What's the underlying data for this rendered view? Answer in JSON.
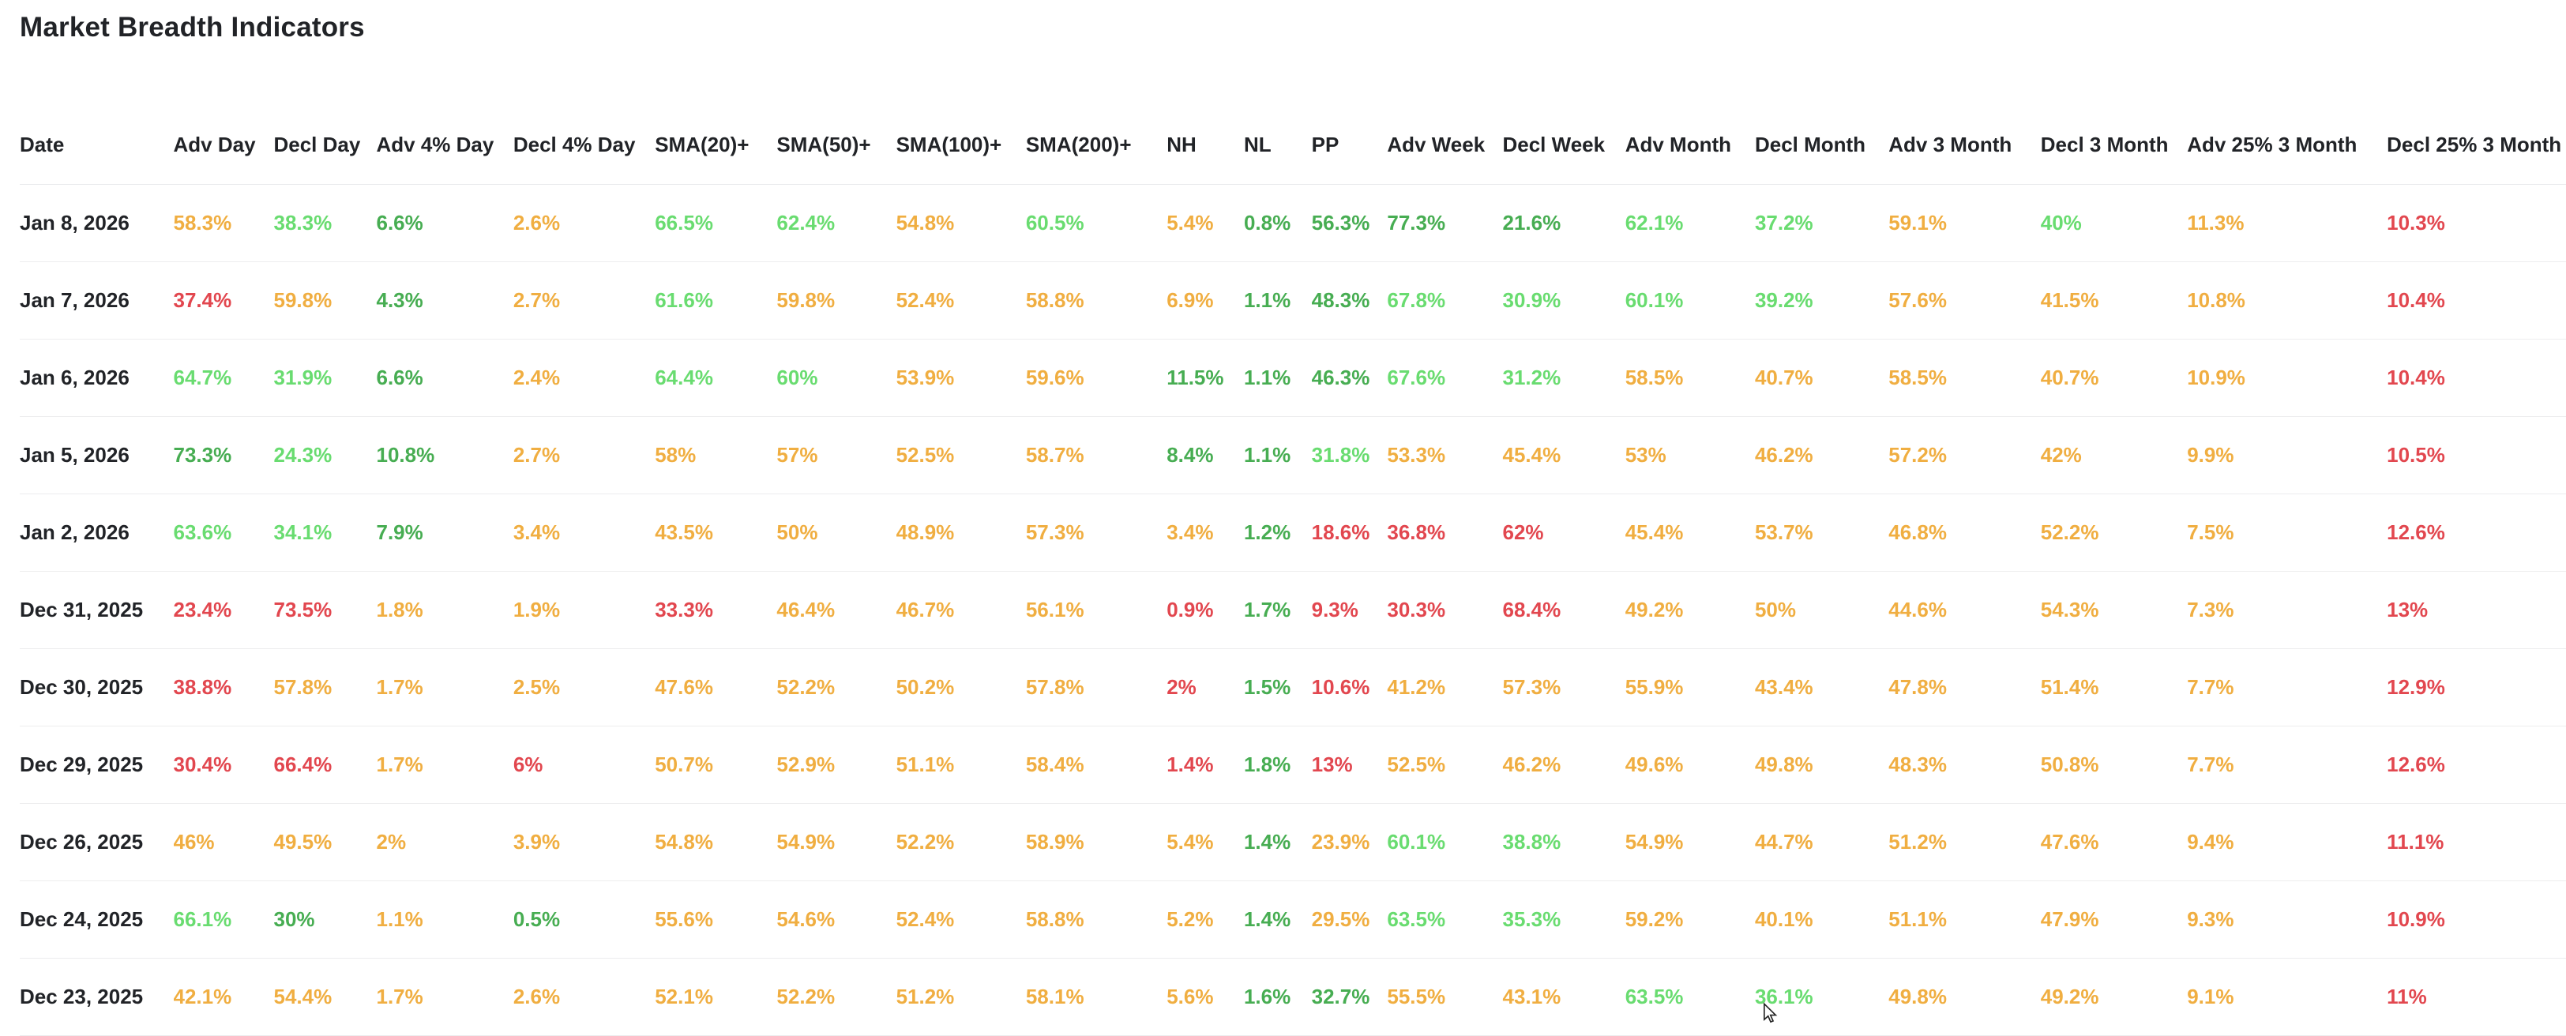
{
  "page": {
    "title": "Market Breadth Indicators"
  },
  "palette": {
    "red": "#e2474f",
    "orange": "#f0ae41",
    "lightgreen": "#69dc70",
    "green": "#47ad52",
    "heading_text": "#212327"
  },
  "table": {
    "columns": [
      "Date",
      "Adv Day",
      "Decl Day",
      "Adv 4% Day",
      "Decl 4% Day",
      "SMA(20)+",
      "SMA(50)+",
      "SMA(100)+",
      "SMA(200)+",
      "NH",
      "NL",
      "PP",
      "Adv Week",
      "Decl Week",
      "Adv Month",
      "Decl Month",
      "Adv 3 Month",
      "Decl 3 Month",
      "Adv 25% 3 Month",
      "Decl 25% 3 Month"
    ],
    "rows": [
      {
        "date": "Jan 8, 2026",
        "cells": [
          {
            "v": "58.3%",
            "c": "orange"
          },
          {
            "v": "38.3%",
            "c": "lightgreen"
          },
          {
            "v": "6.6%",
            "c": "green"
          },
          {
            "v": "2.6%",
            "c": "orange"
          },
          {
            "v": "66.5%",
            "c": "lightgreen"
          },
          {
            "v": "62.4%",
            "c": "lightgreen"
          },
          {
            "v": "54.8%",
            "c": "orange"
          },
          {
            "v": "60.5%",
            "c": "lightgreen"
          },
          {
            "v": "5.4%",
            "c": "orange"
          },
          {
            "v": "0.8%",
            "c": "green"
          },
          {
            "v": "56.3%",
            "c": "green"
          },
          {
            "v": "77.3%",
            "c": "green"
          },
          {
            "v": "21.6%",
            "c": "green"
          },
          {
            "v": "62.1%",
            "c": "lightgreen"
          },
          {
            "v": "37.2%",
            "c": "lightgreen"
          },
          {
            "v": "59.1%",
            "c": "orange"
          },
          {
            "v": "40%",
            "c": "lightgreen"
          },
          {
            "v": "11.3%",
            "c": "orange"
          },
          {
            "v": "10.3%",
            "c": "red"
          }
        ]
      },
      {
        "date": "Jan 7, 2026",
        "cells": [
          {
            "v": "37.4%",
            "c": "red"
          },
          {
            "v": "59.8%",
            "c": "orange"
          },
          {
            "v": "4.3%",
            "c": "green"
          },
          {
            "v": "2.7%",
            "c": "orange"
          },
          {
            "v": "61.6%",
            "c": "lightgreen"
          },
          {
            "v": "59.8%",
            "c": "orange"
          },
          {
            "v": "52.4%",
            "c": "orange"
          },
          {
            "v": "58.8%",
            "c": "orange"
          },
          {
            "v": "6.9%",
            "c": "orange"
          },
          {
            "v": "1.1%",
            "c": "green"
          },
          {
            "v": "48.3%",
            "c": "green"
          },
          {
            "v": "67.8%",
            "c": "lightgreen"
          },
          {
            "v": "30.9%",
            "c": "lightgreen"
          },
          {
            "v": "60.1%",
            "c": "lightgreen"
          },
          {
            "v": "39.2%",
            "c": "lightgreen"
          },
          {
            "v": "57.6%",
            "c": "orange"
          },
          {
            "v": "41.5%",
            "c": "orange"
          },
          {
            "v": "10.8%",
            "c": "orange"
          },
          {
            "v": "10.4%",
            "c": "red"
          }
        ]
      },
      {
        "date": "Jan 6, 2026",
        "cells": [
          {
            "v": "64.7%",
            "c": "lightgreen"
          },
          {
            "v": "31.9%",
            "c": "lightgreen"
          },
          {
            "v": "6.6%",
            "c": "green"
          },
          {
            "v": "2.4%",
            "c": "orange"
          },
          {
            "v": "64.4%",
            "c": "lightgreen"
          },
          {
            "v": "60%",
            "c": "lightgreen"
          },
          {
            "v": "53.9%",
            "c": "orange"
          },
          {
            "v": "59.6%",
            "c": "orange"
          },
          {
            "v": "11.5%",
            "c": "green"
          },
          {
            "v": "1.1%",
            "c": "green"
          },
          {
            "v": "46.3%",
            "c": "green"
          },
          {
            "v": "67.6%",
            "c": "lightgreen"
          },
          {
            "v": "31.2%",
            "c": "lightgreen"
          },
          {
            "v": "58.5%",
            "c": "orange"
          },
          {
            "v": "40.7%",
            "c": "orange"
          },
          {
            "v": "58.5%",
            "c": "orange"
          },
          {
            "v": "40.7%",
            "c": "orange"
          },
          {
            "v": "10.9%",
            "c": "orange"
          },
          {
            "v": "10.4%",
            "c": "red"
          }
        ]
      },
      {
        "date": "Jan 5, 2026",
        "cells": [
          {
            "v": "73.3%",
            "c": "green"
          },
          {
            "v": "24.3%",
            "c": "lightgreen"
          },
          {
            "v": "10.8%",
            "c": "green"
          },
          {
            "v": "2.7%",
            "c": "orange"
          },
          {
            "v": "58%",
            "c": "orange"
          },
          {
            "v": "57%",
            "c": "orange"
          },
          {
            "v": "52.5%",
            "c": "orange"
          },
          {
            "v": "58.7%",
            "c": "orange"
          },
          {
            "v": "8.4%",
            "c": "green"
          },
          {
            "v": "1.1%",
            "c": "green"
          },
          {
            "v": "31.8%",
            "c": "lightgreen"
          },
          {
            "v": "53.3%",
            "c": "orange"
          },
          {
            "v": "45.4%",
            "c": "orange"
          },
          {
            "v": "53%",
            "c": "orange"
          },
          {
            "v": "46.2%",
            "c": "orange"
          },
          {
            "v": "57.2%",
            "c": "orange"
          },
          {
            "v": "42%",
            "c": "orange"
          },
          {
            "v": "9.9%",
            "c": "orange"
          },
          {
            "v": "10.5%",
            "c": "red"
          }
        ]
      },
      {
        "date": "Jan 2, 2026",
        "cells": [
          {
            "v": "63.6%",
            "c": "lightgreen"
          },
          {
            "v": "34.1%",
            "c": "lightgreen"
          },
          {
            "v": "7.9%",
            "c": "green"
          },
          {
            "v": "3.4%",
            "c": "orange"
          },
          {
            "v": "43.5%",
            "c": "orange"
          },
          {
            "v": "50%",
            "c": "orange"
          },
          {
            "v": "48.9%",
            "c": "orange"
          },
          {
            "v": "57.3%",
            "c": "orange"
          },
          {
            "v": "3.4%",
            "c": "orange"
          },
          {
            "v": "1.2%",
            "c": "green"
          },
          {
            "v": "18.6%",
            "c": "red"
          },
          {
            "v": "36.8%",
            "c": "red"
          },
          {
            "v": "62%",
            "c": "red"
          },
          {
            "v": "45.4%",
            "c": "orange"
          },
          {
            "v": "53.7%",
            "c": "orange"
          },
          {
            "v": "46.8%",
            "c": "orange"
          },
          {
            "v": "52.2%",
            "c": "orange"
          },
          {
            "v": "7.5%",
            "c": "orange"
          },
          {
            "v": "12.6%",
            "c": "red"
          }
        ]
      },
      {
        "date": "Dec 31, 2025",
        "cells": [
          {
            "v": "23.4%",
            "c": "red"
          },
          {
            "v": "73.5%",
            "c": "red"
          },
          {
            "v": "1.8%",
            "c": "orange"
          },
          {
            "v": "1.9%",
            "c": "orange"
          },
          {
            "v": "33.3%",
            "c": "red"
          },
          {
            "v": "46.4%",
            "c": "orange"
          },
          {
            "v": "46.7%",
            "c": "orange"
          },
          {
            "v": "56.1%",
            "c": "orange"
          },
          {
            "v": "0.9%",
            "c": "red"
          },
          {
            "v": "1.7%",
            "c": "green"
          },
          {
            "v": "9.3%",
            "c": "red"
          },
          {
            "v": "30.3%",
            "c": "red"
          },
          {
            "v": "68.4%",
            "c": "red"
          },
          {
            "v": "49.2%",
            "c": "orange"
          },
          {
            "v": "50%",
            "c": "orange"
          },
          {
            "v": "44.6%",
            "c": "orange"
          },
          {
            "v": "54.3%",
            "c": "orange"
          },
          {
            "v": "7.3%",
            "c": "orange"
          },
          {
            "v": "13%",
            "c": "red"
          }
        ]
      },
      {
        "date": "Dec 30, 2025",
        "cells": [
          {
            "v": "38.8%",
            "c": "red"
          },
          {
            "v": "57.8%",
            "c": "orange"
          },
          {
            "v": "1.7%",
            "c": "orange"
          },
          {
            "v": "2.5%",
            "c": "orange"
          },
          {
            "v": "47.6%",
            "c": "orange"
          },
          {
            "v": "52.2%",
            "c": "orange"
          },
          {
            "v": "50.2%",
            "c": "orange"
          },
          {
            "v": "57.8%",
            "c": "orange"
          },
          {
            "v": "2%",
            "c": "red"
          },
          {
            "v": "1.5%",
            "c": "green"
          },
          {
            "v": "10.6%",
            "c": "red"
          },
          {
            "v": "41.2%",
            "c": "orange"
          },
          {
            "v": "57.3%",
            "c": "orange"
          },
          {
            "v": "55.9%",
            "c": "orange"
          },
          {
            "v": "43.4%",
            "c": "orange"
          },
          {
            "v": "47.8%",
            "c": "orange"
          },
          {
            "v": "51.4%",
            "c": "orange"
          },
          {
            "v": "7.7%",
            "c": "orange"
          },
          {
            "v": "12.9%",
            "c": "red"
          }
        ]
      },
      {
        "date": "Dec 29, 2025",
        "cells": [
          {
            "v": "30.4%",
            "c": "red"
          },
          {
            "v": "66.4%",
            "c": "red"
          },
          {
            "v": "1.7%",
            "c": "orange"
          },
          {
            "v": "6%",
            "c": "red"
          },
          {
            "v": "50.7%",
            "c": "orange"
          },
          {
            "v": "52.9%",
            "c": "orange"
          },
          {
            "v": "51.1%",
            "c": "orange"
          },
          {
            "v": "58.4%",
            "c": "orange"
          },
          {
            "v": "1.4%",
            "c": "red"
          },
          {
            "v": "1.8%",
            "c": "green"
          },
          {
            "v": "13%",
            "c": "red"
          },
          {
            "v": "52.5%",
            "c": "orange"
          },
          {
            "v": "46.2%",
            "c": "orange"
          },
          {
            "v": "49.6%",
            "c": "orange"
          },
          {
            "v": "49.8%",
            "c": "orange"
          },
          {
            "v": "48.3%",
            "c": "orange"
          },
          {
            "v": "50.8%",
            "c": "orange"
          },
          {
            "v": "7.7%",
            "c": "orange"
          },
          {
            "v": "12.6%",
            "c": "red"
          }
        ]
      },
      {
        "date": "Dec 26, 2025",
        "cells": [
          {
            "v": "46%",
            "c": "orange"
          },
          {
            "v": "49.5%",
            "c": "orange"
          },
          {
            "v": "2%",
            "c": "orange"
          },
          {
            "v": "3.9%",
            "c": "orange"
          },
          {
            "v": "54.8%",
            "c": "orange"
          },
          {
            "v": "54.9%",
            "c": "orange"
          },
          {
            "v": "52.2%",
            "c": "orange"
          },
          {
            "v": "58.9%",
            "c": "orange"
          },
          {
            "v": "5.4%",
            "c": "orange"
          },
          {
            "v": "1.4%",
            "c": "green"
          },
          {
            "v": "23.9%",
            "c": "orange"
          },
          {
            "v": "60.1%",
            "c": "lightgreen"
          },
          {
            "v": "38.8%",
            "c": "lightgreen"
          },
          {
            "v": "54.9%",
            "c": "orange"
          },
          {
            "v": "44.7%",
            "c": "orange"
          },
          {
            "v": "51.2%",
            "c": "orange"
          },
          {
            "v": "47.6%",
            "c": "orange"
          },
          {
            "v": "9.4%",
            "c": "orange"
          },
          {
            "v": "11.1%",
            "c": "red"
          }
        ]
      },
      {
        "date": "Dec 24, 2025",
        "cells": [
          {
            "v": "66.1%",
            "c": "lightgreen"
          },
          {
            "v": "30%",
            "c": "green"
          },
          {
            "v": "1.1%",
            "c": "orange"
          },
          {
            "v": "0.5%",
            "c": "green"
          },
          {
            "v": "55.6%",
            "c": "orange"
          },
          {
            "v": "54.6%",
            "c": "orange"
          },
          {
            "v": "52.4%",
            "c": "orange"
          },
          {
            "v": "58.8%",
            "c": "orange"
          },
          {
            "v": "5.2%",
            "c": "orange"
          },
          {
            "v": "1.4%",
            "c": "green"
          },
          {
            "v": "29.5%",
            "c": "orange"
          },
          {
            "v": "63.5%",
            "c": "lightgreen"
          },
          {
            "v": "35.3%",
            "c": "lightgreen"
          },
          {
            "v": "59.2%",
            "c": "orange"
          },
          {
            "v": "40.1%",
            "c": "orange"
          },
          {
            "v": "51.1%",
            "c": "orange"
          },
          {
            "v": "47.9%",
            "c": "orange"
          },
          {
            "v": "9.3%",
            "c": "orange"
          },
          {
            "v": "10.9%",
            "c": "red"
          }
        ]
      },
      {
        "date": "Dec 23, 2025",
        "cells": [
          {
            "v": "42.1%",
            "c": "orange"
          },
          {
            "v": "54.4%",
            "c": "orange"
          },
          {
            "v": "1.7%",
            "c": "orange"
          },
          {
            "v": "2.6%",
            "c": "orange"
          },
          {
            "v": "52.1%",
            "c": "orange"
          },
          {
            "v": "52.2%",
            "c": "orange"
          },
          {
            "v": "51.2%",
            "c": "orange"
          },
          {
            "v": "58.1%",
            "c": "orange"
          },
          {
            "v": "5.6%",
            "c": "orange"
          },
          {
            "v": "1.6%",
            "c": "green"
          },
          {
            "v": "32.7%",
            "c": "green"
          },
          {
            "v": "55.5%",
            "c": "orange"
          },
          {
            "v": "43.1%",
            "c": "orange"
          },
          {
            "v": "63.5%",
            "c": "lightgreen"
          },
          {
            "v": "36.1%",
            "c": "lightgreen"
          },
          {
            "v": "49.8%",
            "c": "orange"
          },
          {
            "v": "49.2%",
            "c": "orange"
          },
          {
            "v": "9.1%",
            "c": "orange"
          },
          {
            "v": "11%",
            "c": "red"
          }
        ]
      }
    ]
  }
}
